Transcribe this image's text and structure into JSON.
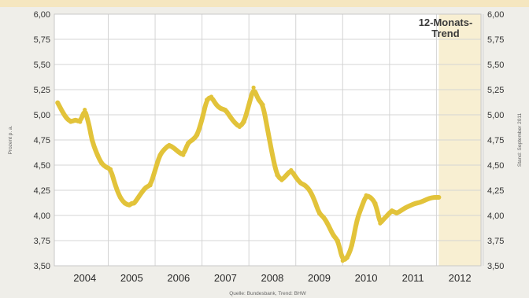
{
  "chart_data": {
    "type": "line",
    "ylim": [
      3.5,
      6.0
    ],
    "xlim": [
      2003.35,
      2012.45
    ],
    "y_ticks": [
      "6,00",
      "5,75",
      "5,50",
      "5,25",
      "5,00",
      "4,75",
      "4,50",
      "4,25",
      "4,00",
      "3,75",
      "3,50"
    ],
    "x_ticks": [
      "2004",
      "2005",
      "2006",
      "2007",
      "2008",
      "2009",
      "2010",
      "2011",
      "2012"
    ],
    "ylabel": "Prozent p. a.",
    "right_label": "Stand: September 2011",
    "source": "Quelle: Bundesbank, Trend: BHW",
    "trend_label": [
      "12-Monats-",
      "Trend"
    ],
    "trend_start": 2011.55,
    "grid": true,
    "colors": {
      "line": "#e2c33a",
      "trend_band": "#f8efd2",
      "grid": "#d4d4d4",
      "top_strip": "#f5e6bf"
    },
    "series": [
      {
        "x": [
          2003.42,
          2003.5,
          2003.6,
          2003.7,
          2003.8,
          2003.9,
          2004.0,
          2004.05,
          2004.1,
          2004.15,
          2004.25,
          2004.35,
          2004.45,
          2004.55,
          2004.65,
          2004.75,
          2004.85,
          2004.95,
          2005.0,
          2005.05,
          2005.1,
          2005.2,
          2005.3,
          2005.4,
          2005.5,
          2005.6,
          2005.7,
          2005.8,
          2005.9,
          2006.0,
          2006.1,
          2006.2,
          2006.3,
          2006.4,
          2006.5,
          2006.6,
          2006.7,
          2006.8,
          2006.9,
          2007.0,
          2007.1,
          2007.2,
          2007.3,
          2007.4,
          2007.5,
          2007.6,
          2007.7,
          2007.8,
          2007.9,
          2008.0,
          2008.1,
          2008.2,
          2008.3,
          2008.4,
          2008.5,
          2008.6,
          2008.7,
          2008.8,
          2008.9,
          2009.0,
          2009.1,
          2009.2,
          2009.3,
          2009.4,
          2009.5,
          2009.6,
          2009.7,
          2009.8,
          2009.9,
          2010.0,
          2010.1,
          2010.2,
          2010.3,
          2010.35,
          2010.45,
          2010.55,
          2010.65,
          2010.75,
          2010.85,
          2010.95,
          2011.05,
          2011.15,
          2011.25,
          2011.35,
          2011.45,
          2011.55
        ],
        "values": [
          5.12,
          5.05,
          4.97,
          4.93,
          4.95,
          4.93,
          5.05,
          4.97,
          4.88,
          4.75,
          4.62,
          4.52,
          4.48,
          4.46,
          4.3,
          4.18,
          4.12,
          4.1,
          4.12,
          4.12,
          4.15,
          4.22,
          4.28,
          4.3,
          4.45,
          4.6,
          4.66,
          4.7,
          4.67,
          4.63,
          4.6,
          4.72,
          4.75,
          4.8,
          4.95,
          5.15,
          5.18,
          5.1,
          5.06,
          5.05,
          4.98,
          4.92,
          4.88,
          4.93,
          5.1,
          5.27,
          5.15,
          5.1,
          4.85,
          4.6,
          4.4,
          4.35,
          4.4,
          4.45,
          4.38,
          4.32,
          4.3,
          4.25,
          4.15,
          4.02,
          3.98,
          3.9,
          3.8,
          3.75,
          3.55,
          3.58,
          3.7,
          3.95,
          4.08,
          4.2,
          4.18,
          4.12,
          3.92,
          3.95,
          4.0,
          4.05,
          4.02,
          4.05,
          4.08,
          4.1,
          4.12,
          4.13,
          4.15,
          4.17,
          4.18,
          4.18
        ]
      }
    ]
  }
}
